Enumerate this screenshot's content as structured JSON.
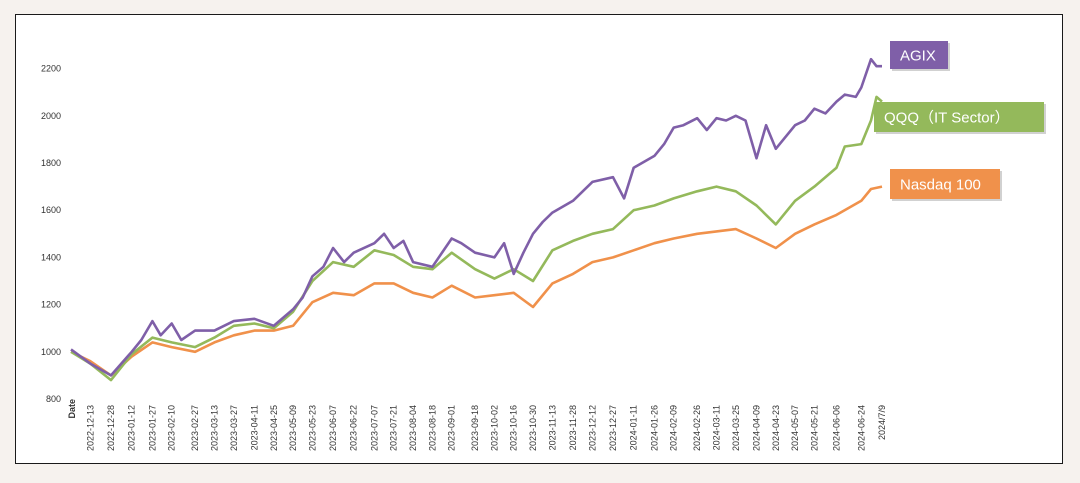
{
  "chart_data": {
    "type": "line",
    "title": "",
    "xlabel": "Date",
    "ylabel": "",
    "ylim": [
      800,
      2300
    ],
    "yticks": [
      800,
      1000,
      1200,
      1400,
      1600,
      1800,
      2000,
      2200
    ],
    "grid": false,
    "legend_placement": "right, at line ends",
    "x_start": "2022-11-29",
    "x_end": "2024-07-09",
    "xtick_labels": [
      "2022-12-13",
      "2022-12-28",
      "2023-01-12",
      "2023-01-27",
      "2023-02-10",
      "2023-02-27",
      "2023-03-13",
      "2023-03-27",
      "2023-04-11",
      "2023-04-25",
      "2023-05-09",
      "2023-05-23",
      "2023-06-07",
      "2023-06-22",
      "2023-07-07",
      "2023-07-21",
      "2023-08-04",
      "2023-08-18",
      "2023-09-01",
      "2023-09-18",
      "2023-10-02",
      "2023-10-16",
      "2023-10-30",
      "2023-11-13",
      "2023-11-28",
      "2023-12-12",
      "2023-12-27",
      "2024-01-11",
      "2024-01-26",
      "2024-02-09",
      "2024-02-26",
      "2024-03-11",
      "2024-03-25",
      "2024-04-09",
      "2024-04-23",
      "2024-05-07",
      "2024-05-21",
      "2024-06-06",
      "2024-06-24",
      "2024/7/9"
    ],
    "series": [
      {
        "name": "AGIX",
        "color": "#7f5fa8",
        "x": [
          "2022-11-29",
          "2022-12-13",
          "2022-12-28",
          "2023-01-12",
          "2023-01-19",
          "2023-01-27",
          "2023-02-02",
          "2023-02-10",
          "2023-02-17",
          "2023-02-27",
          "2023-03-13",
          "2023-03-20",
          "2023-03-27",
          "2023-04-11",
          "2023-04-25",
          "2023-05-09",
          "2023-05-16",
          "2023-05-23",
          "2023-05-31",
          "2023-06-07",
          "2023-06-15",
          "2023-06-22",
          "2023-07-07",
          "2023-07-14",
          "2023-07-21",
          "2023-07-28",
          "2023-08-04",
          "2023-08-18",
          "2023-09-01",
          "2023-09-08",
          "2023-09-18",
          "2023-10-02",
          "2023-10-09",
          "2023-10-16",
          "2023-10-23",
          "2023-10-30",
          "2023-11-06",
          "2023-11-13",
          "2023-11-28",
          "2023-12-12",
          "2023-12-27",
          "2024-01-04",
          "2024-01-11",
          "2024-01-26",
          "2024-02-02",
          "2024-02-09",
          "2024-02-16",
          "2024-02-26",
          "2024-03-04",
          "2024-03-11",
          "2024-03-18",
          "2024-03-25",
          "2024-04-01",
          "2024-04-09",
          "2024-04-16",
          "2024-04-23",
          "2024-05-07",
          "2024-05-14",
          "2024-05-21",
          "2024-05-29",
          "2024-06-06",
          "2024-06-12",
          "2024-06-20",
          "2024-06-24",
          "2024-07-01",
          "2024-07-05",
          "2024-07-09"
        ],
        "y": [
          1010,
          950,
          900,
          1000,
          1050,
          1130,
          1070,
          1120,
          1050,
          1090,
          1090,
          1110,
          1130,
          1140,
          1110,
          1180,
          1230,
          1320,
          1360,
          1440,
          1380,
          1420,
          1460,
          1500,
          1440,
          1470,
          1380,
          1360,
          1480,
          1460,
          1420,
          1400,
          1460,
          1330,
          1420,
          1500,
          1550,
          1590,
          1640,
          1720,
          1740,
          1650,
          1780,
          1830,
          1880,
          1950,
          1960,
          1990,
          1940,
          1990,
          1980,
          2000,
          1980,
          1820,
          1960,
          1860,
          1960,
          1980,
          2030,
          2010,
          2060,
          2090,
          2080,
          2120,
          2240,
          2210,
          2210
        ]
      },
      {
        "name": "QQQ（IT Sector）",
        "color": "#94b95b",
        "x": [
          "2022-11-29",
          "2022-12-13",
          "2022-12-28",
          "2023-01-12",
          "2023-01-27",
          "2023-02-10",
          "2023-02-27",
          "2023-03-13",
          "2023-03-27",
          "2023-04-11",
          "2023-04-25",
          "2023-05-09",
          "2023-05-23",
          "2023-06-07",
          "2023-06-22",
          "2023-07-07",
          "2023-07-21",
          "2023-08-04",
          "2023-08-18",
          "2023-09-01",
          "2023-09-18",
          "2023-10-02",
          "2023-10-16",
          "2023-10-30",
          "2023-11-13",
          "2023-11-28",
          "2023-12-12",
          "2023-12-27",
          "2024-01-11",
          "2024-01-26",
          "2024-02-09",
          "2024-02-26",
          "2024-03-11",
          "2024-03-25",
          "2024-04-09",
          "2024-04-23",
          "2024-05-07",
          "2024-05-21",
          "2024-06-06",
          "2024-06-12",
          "2024-06-24",
          "2024-07-01",
          "2024-07-05",
          "2024-07-09"
        ],
        "y": [
          1000,
          950,
          880,
          990,
          1060,
          1040,
          1020,
          1060,
          1110,
          1120,
          1100,
          1170,
          1300,
          1380,
          1360,
          1430,
          1410,
          1360,
          1350,
          1420,
          1350,
          1310,
          1350,
          1300,
          1430,
          1470,
          1500,
          1520,
          1600,
          1620,
          1650,
          1680,
          1700,
          1680,
          1620,
          1540,
          1640,
          1700,
          1780,
          1870,
          1880,
          1980,
          2080,
          2060
        ]
      },
      {
        "name": "Nasdaq 100",
        "color": "#f0914b",
        "x": [
          "2022-11-29",
          "2022-12-13",
          "2022-12-28",
          "2023-01-12",
          "2023-01-27",
          "2023-02-10",
          "2023-02-27",
          "2023-03-13",
          "2023-03-27",
          "2023-04-11",
          "2023-04-25",
          "2023-05-09",
          "2023-05-23",
          "2023-06-07",
          "2023-06-22",
          "2023-07-07",
          "2023-07-21",
          "2023-08-04",
          "2023-08-18",
          "2023-09-01",
          "2023-09-18",
          "2023-10-02",
          "2023-10-16",
          "2023-10-30",
          "2023-11-13",
          "2023-11-28",
          "2023-12-12",
          "2023-12-27",
          "2024-01-11",
          "2024-01-26",
          "2024-02-09",
          "2024-02-26",
          "2024-03-11",
          "2024-03-25",
          "2024-04-09",
          "2024-04-23",
          "2024-05-07",
          "2024-05-21",
          "2024-06-06",
          "2024-06-24",
          "2024-07-01",
          "2024-07-09"
        ],
        "y": [
          1000,
          960,
          900,
          980,
          1040,
          1020,
          1000,
          1040,
          1070,
          1090,
          1090,
          1110,
          1210,
          1250,
          1240,
          1290,
          1290,
          1250,
          1230,
          1280,
          1230,
          1240,
          1250,
          1190,
          1290,
          1330,
          1380,
          1400,
          1430,
          1460,
          1480,
          1500,
          1510,
          1520,
          1480,
          1440,
          1500,
          1540,
          1580,
          1640,
          1690,
          1700
        ]
      }
    ]
  },
  "legend": [
    {
      "label": "AGIX",
      "color": "#7f5fa8"
    },
    {
      "label": "QQQ（IT Sector）",
      "color": "#94b95b"
    },
    {
      "label": "Nasdaq 100",
      "color": "#f0914b"
    }
  ]
}
